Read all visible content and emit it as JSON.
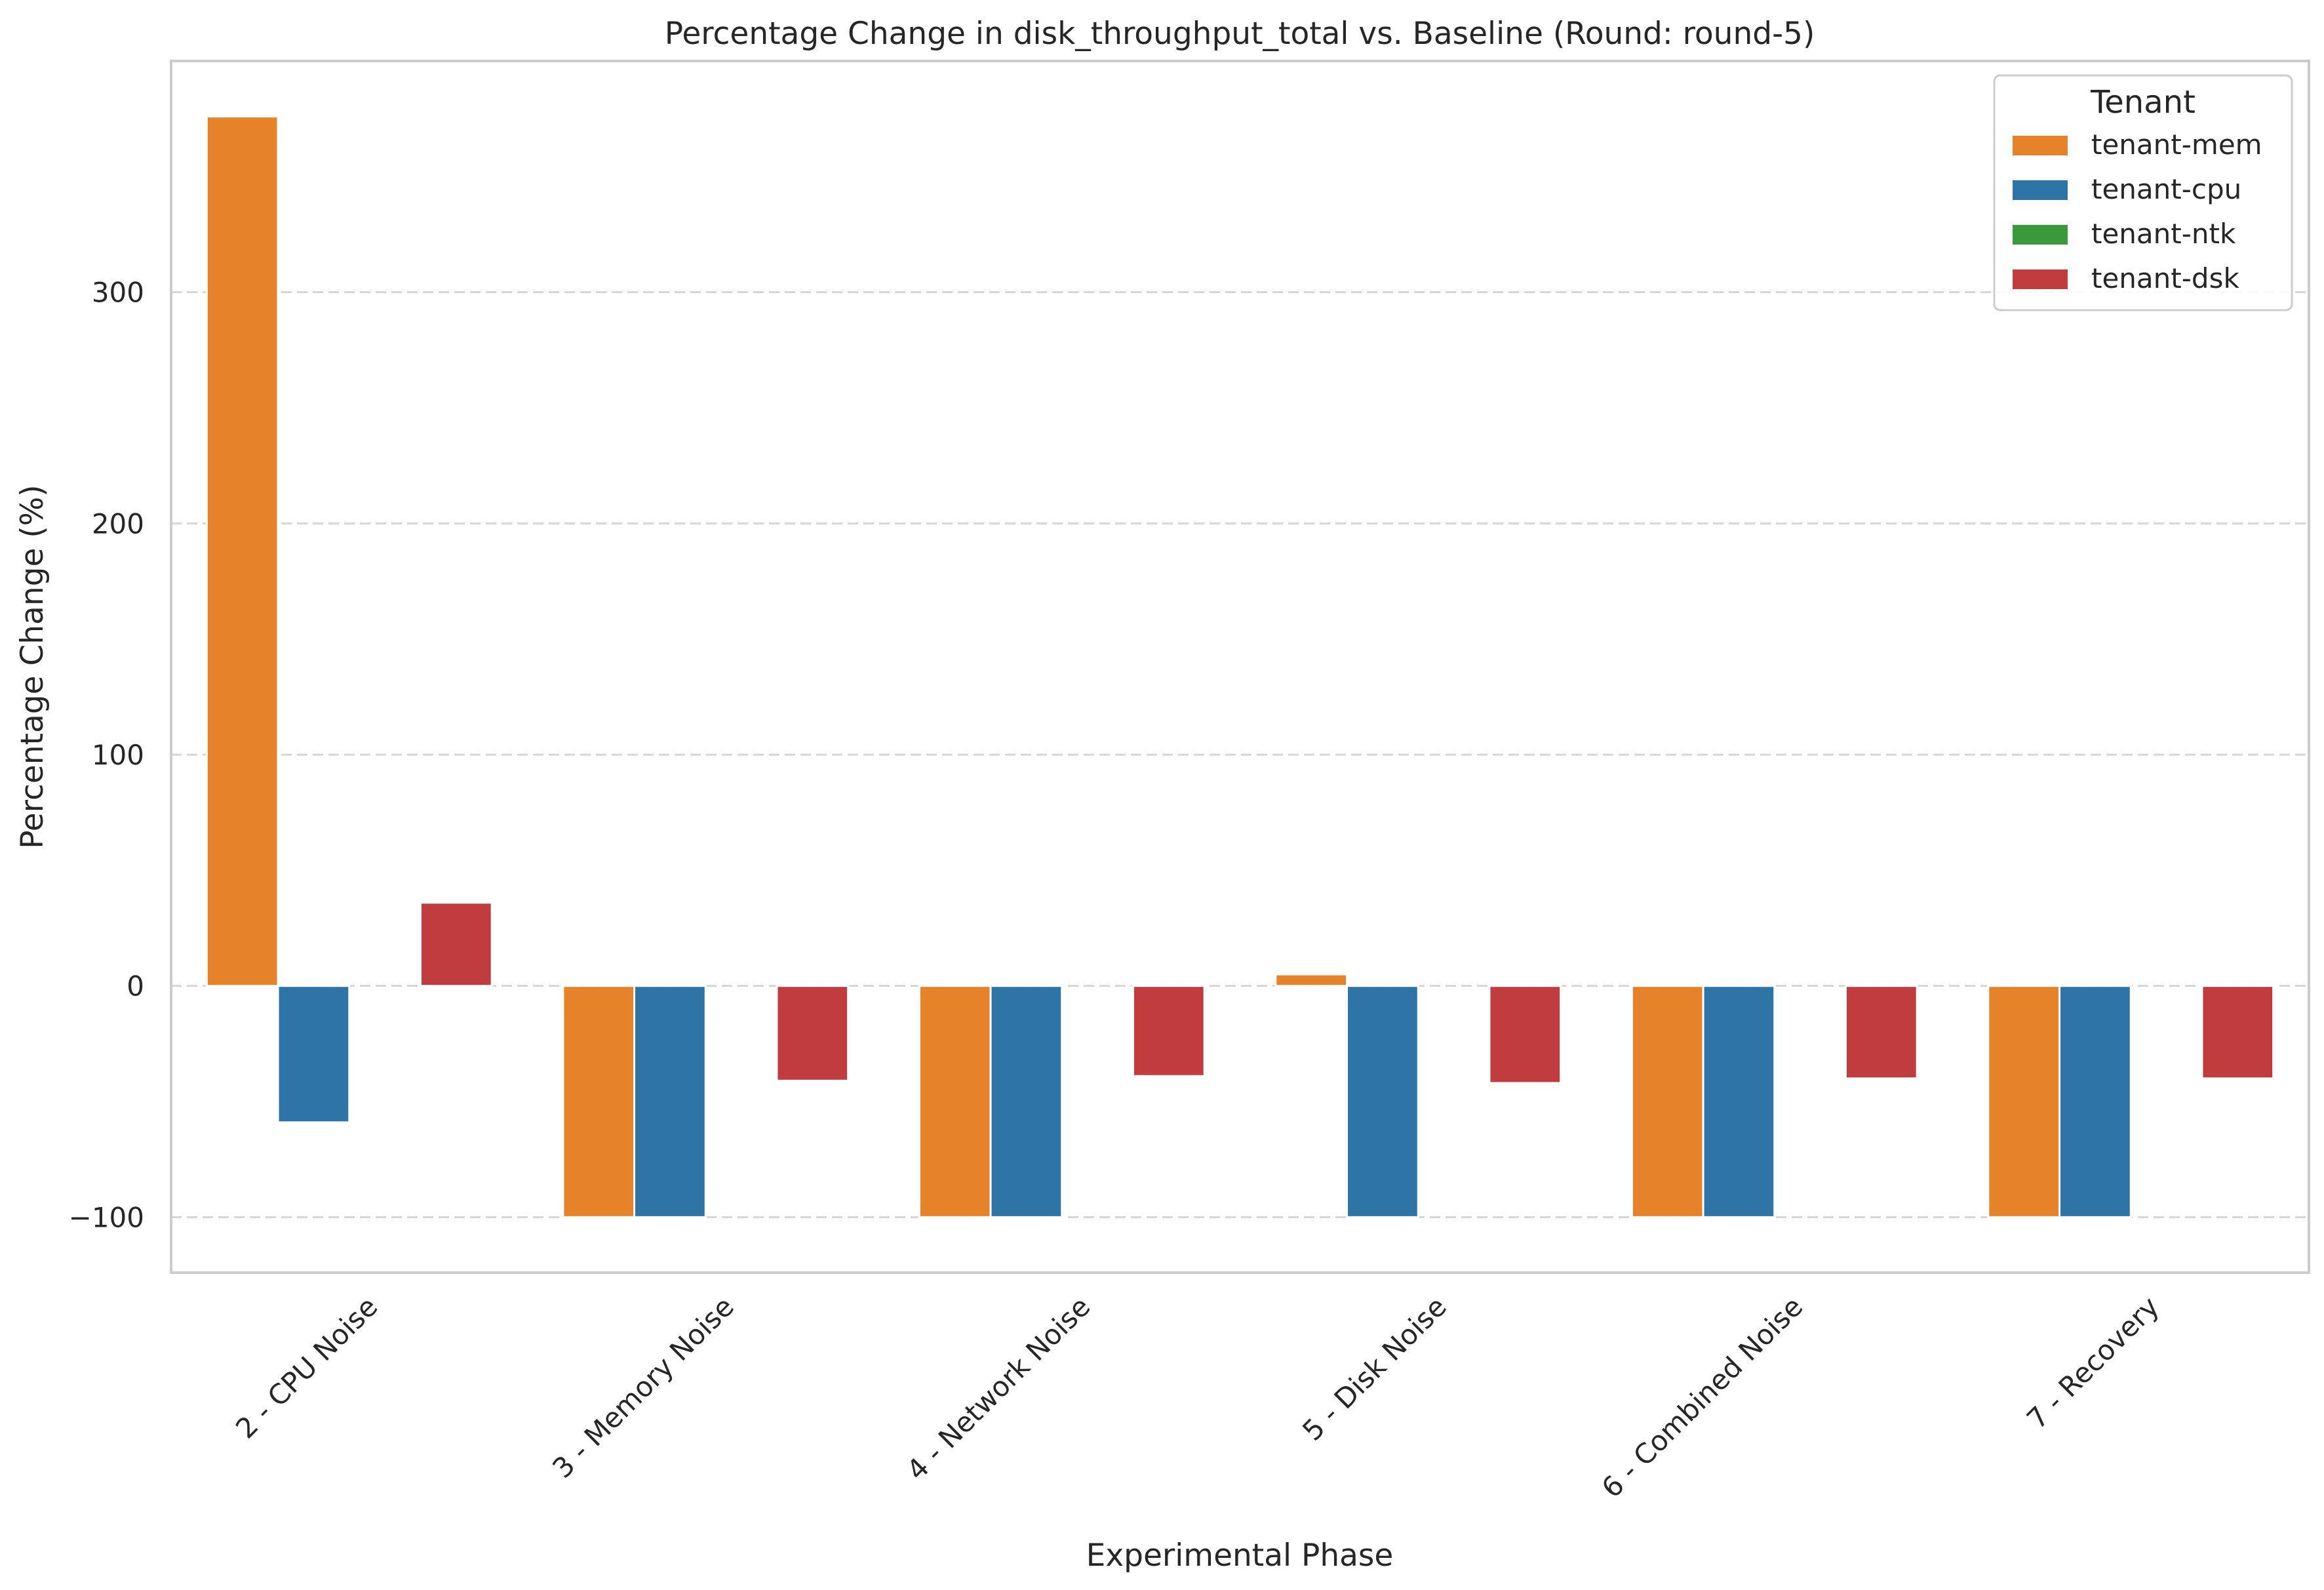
{
  "chart_data": {
    "type": "bar",
    "title": "Percentage Change in disk_throughput_total vs. Baseline (Round: round-5)",
    "xlabel": "Experimental Phase",
    "ylabel": "Percentage Change (%)",
    "categories": [
      "2 - CPU Noise",
      "3 - Memory Noise",
      "4 - Network Noise",
      "5 - Disk Noise",
      "6 - Combined Noise",
      "7 - Recovery"
    ],
    "yticks": [
      -100,
      0,
      100,
      200,
      300
    ],
    "ytick_labels": [
      "−100",
      "0",
      "100",
      "200",
      "300"
    ],
    "ylim": [
      -124,
      400
    ],
    "grid": true,
    "legend": {
      "title": "Tenant",
      "position": "top-right"
    },
    "series": [
      {
        "name": "tenant-mem",
        "color": "#e6832a",
        "values": [
          376,
          -100,
          -100,
          5,
          -100,
          -100
        ]
      },
      {
        "name": "tenant-cpu",
        "color": "#2f74a6",
        "values": [
          -59,
          -100,
          -100,
          -100,
          -100,
          -100
        ]
      },
      {
        "name": "tenant-ntk",
        "color": "#3a9a3a",
        "values": [
          null,
          null,
          null,
          null,
          null,
          null
        ]
      },
      {
        "name": "tenant-dsk",
        "color": "#c13c3e",
        "values": [
          36,
          -41,
          -39,
          -42,
          -40,
          -40
        ]
      }
    ]
  }
}
